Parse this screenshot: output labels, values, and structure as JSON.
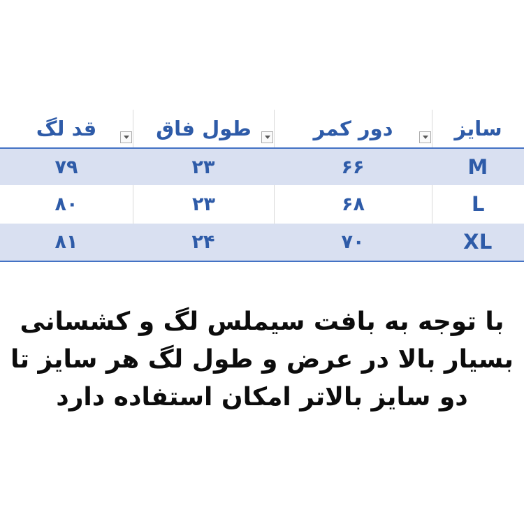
{
  "colors": {
    "accent_blue": "#2e5ba8",
    "strong_border": "#4472c4",
    "band_bg": "#d9e0f1",
    "sep_gray": "#d9d9d9",
    "btn_border": "#ababab",
    "btn_bg": "#fafafa",
    "arrow_gray": "#595959",
    "text_black": "#0c0c0c",
    "page_bg": "#ffffff"
  },
  "table": {
    "direction": "rtl",
    "columns": [
      {
        "key": "size",
        "label": "سایز",
        "has_filter": false
      },
      {
        "key": "waist",
        "label": "دور کمر",
        "has_filter": true
      },
      {
        "key": "rise",
        "label": "طول فاق",
        "has_filter": true
      },
      {
        "key": "leg",
        "label": "قد لگ",
        "has_filter": true
      }
    ],
    "rows": [
      {
        "size": "M",
        "waist": "۶۶",
        "rise": "۲۳",
        "leg": "۷۹"
      },
      {
        "size": "L",
        "waist": "۶۸",
        "rise": "۲۳",
        "leg": "۸۰"
      },
      {
        "size": "XL",
        "waist": "۷۰",
        "rise": "۲۴",
        "leg": "۸۱"
      }
    ]
  },
  "icons": {
    "filter_dropdown": "chevron-down-icon"
  },
  "note": {
    "lines": [
      "با توجه به بافت سیملس لگ و کشسانی",
      "بسیار بالا در عرض و طول لگ هر سایز تا",
      "دو سایز بالاتر امکان استفاده دارد"
    ]
  }
}
